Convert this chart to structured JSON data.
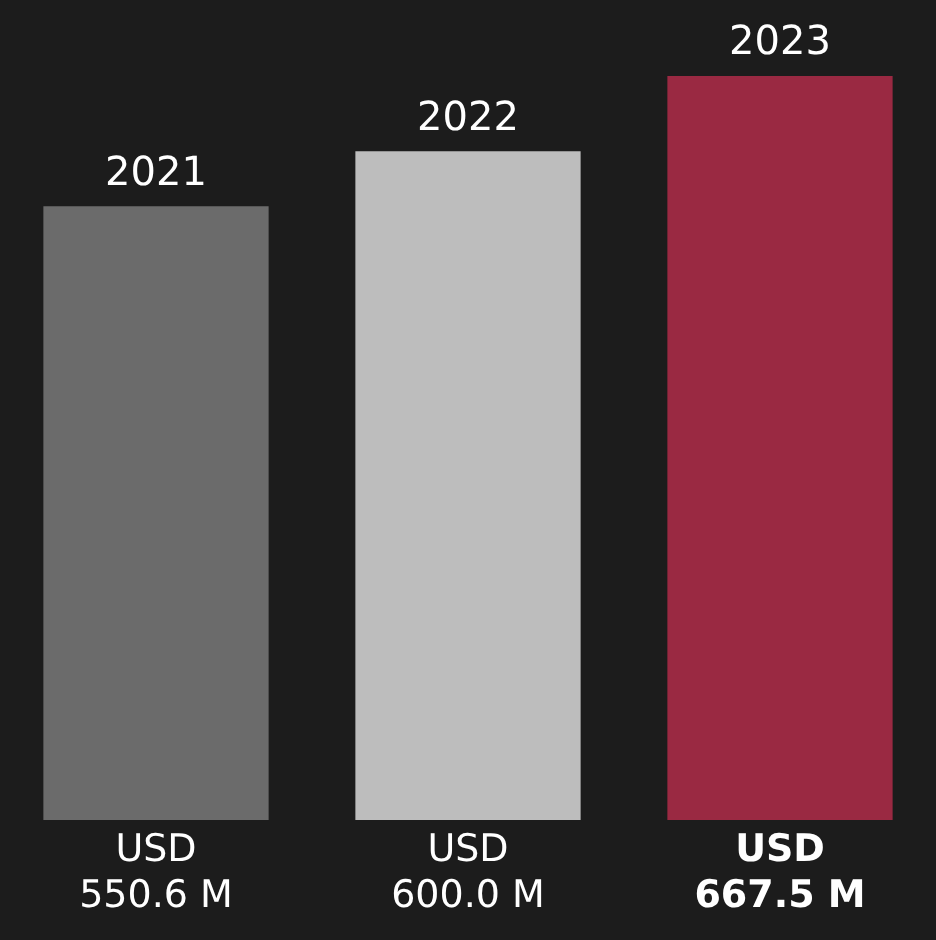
{
  "chart_data": {
    "type": "bar",
    "categories": [
      "2021",
      "2022",
      "2023"
    ],
    "values": [
      550.6,
      600.0,
      667.5
    ],
    "colors": [
      "#6b6b6b",
      "#bdbdbd",
      "#9a2942"
    ],
    "value_labels": [
      "USD 550.6 M",
      "USD 600.0 M",
      "USD 667.5 M"
    ],
    "ylim": [
      0,
      667.5
    ]
  }
}
